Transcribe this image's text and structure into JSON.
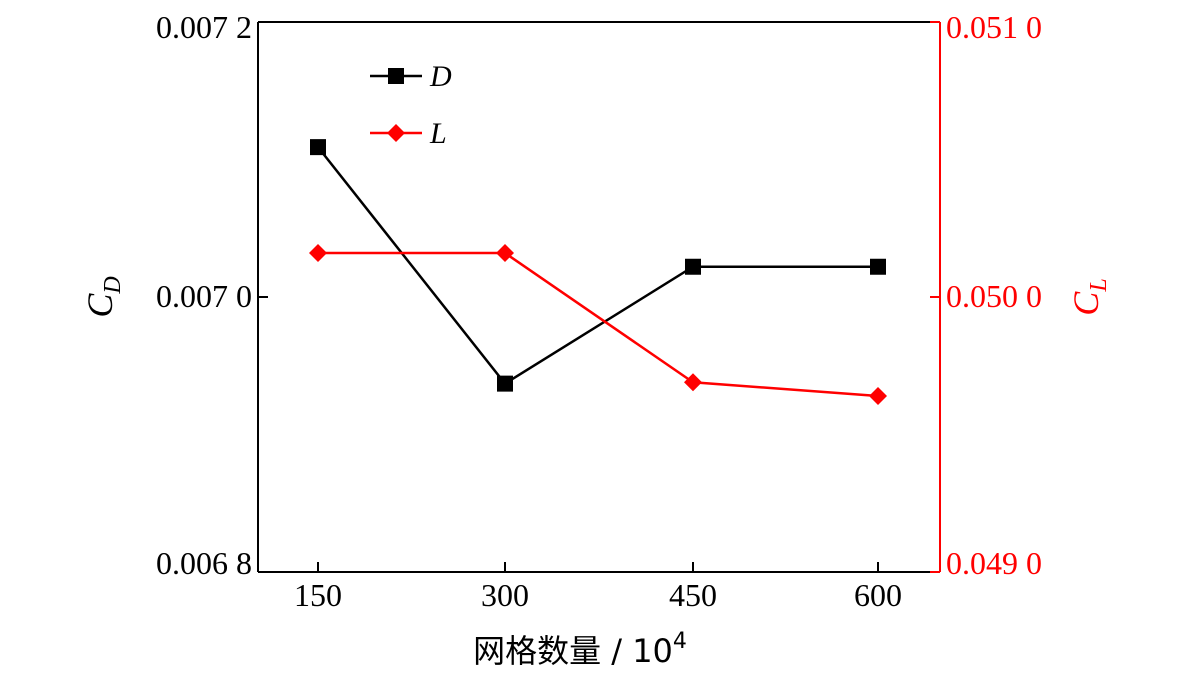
{
  "chart_data": {
    "type": "line",
    "xlabel": "网格数量 / 10",
    "xlabel_superscript": "4",
    "categories": [
      "150",
      "300",
      "450",
      "600"
    ],
    "y_left": {
      "label_main": "C",
      "label_sub": "D",
      "ylim": [
        0.0068,
        0.0072
      ],
      "ticks": [
        {
          "value": 0.0072,
          "label": "0.007 2"
        },
        {
          "value": 0.007,
          "label": "0.007 0"
        },
        {
          "value": 0.0068,
          "label": "0.006 8"
        }
      ],
      "color": "#000000"
    },
    "y_right": {
      "label_main": "C",
      "label_sub": "L",
      "ylim": [
        0.049,
        0.051
      ],
      "ticks": [
        {
          "value": 0.051,
          "label": "0.051 0"
        },
        {
          "value": 0.05,
          "label": "0.050 0"
        },
        {
          "value": 0.049,
          "label": "0.049 0"
        }
      ],
      "color": "#ff0000"
    },
    "series": [
      {
        "name": "D",
        "axis": "left",
        "color": "#000000",
        "marker": "square",
        "values": [
          0.007109,
          0.006937,
          0.007022,
          0.007022
        ]
      },
      {
        "name": "L",
        "axis": "right",
        "color": "#ff0000",
        "marker": "diamond",
        "values": [
          0.05016,
          0.05016,
          0.04969,
          0.04964
        ]
      }
    ],
    "legend_position": "top-left",
    "grid": false
  }
}
